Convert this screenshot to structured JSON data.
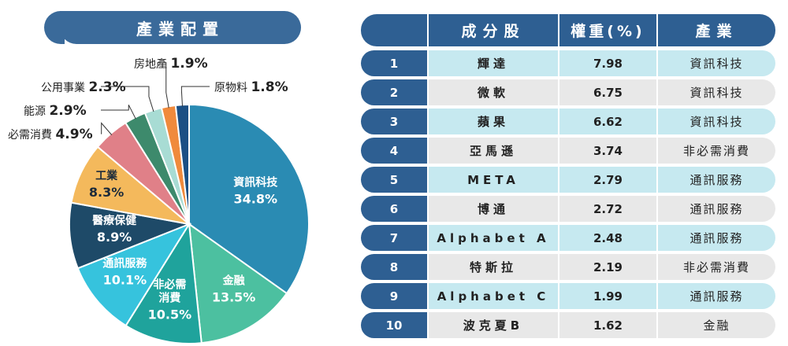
{
  "chart_data": {
    "type": "pie",
    "title": "產業配置",
    "slices": [
      {
        "label": "資訊科技",
        "value": 34.8,
        "text": "34.8%",
        "color": "#2a8bb3"
      },
      {
        "label": "金融",
        "value": 13.5,
        "text": "13.5%",
        "color": "#4cc0a0"
      },
      {
        "label": "非必需消費",
        "value": 10.5,
        "text": "10.5%",
        "color": "#1fa39c"
      },
      {
        "label": "通訊服務",
        "value": 10.1,
        "text": "10.1%",
        "color": "#36c3dd"
      },
      {
        "label": "醫療保健",
        "value": 8.9,
        "text": "8.9%",
        "color": "#1e4a68"
      },
      {
        "label": "工業",
        "value": 8.3,
        "text": "8.3%",
        "color": "#f4b95c"
      },
      {
        "label": "必需消費",
        "value": 4.9,
        "text": "4.9%",
        "color": "#e08088"
      },
      {
        "label": "能源",
        "value": 2.9,
        "text": "2.9%",
        "color": "#3d8a6c"
      },
      {
        "label": "公用事業",
        "value": 2.3,
        "text": "2.3%",
        "color": "#a8dcd4"
      },
      {
        "label": "房地產",
        "value": 1.9,
        "text": "1.9%",
        "color": "#f08a3c"
      },
      {
        "label": "原物料",
        "value": 1.8,
        "text": "1.8%",
        "color": "#1b4f84"
      }
    ]
  },
  "table": {
    "headers": {
      "rank": "",
      "name": "成分股",
      "weight": "權重(%)",
      "sector": "產業"
    },
    "rows": [
      {
        "rank": "1",
        "name": "輝達",
        "weight": "7.98",
        "sector": "資訊科技"
      },
      {
        "rank": "2",
        "name": "微軟",
        "weight": "6.75",
        "sector": "資訊科技"
      },
      {
        "rank": "3",
        "name": "蘋果",
        "weight": "6.62",
        "sector": "資訊科技"
      },
      {
        "rank": "4",
        "name": "亞馬遜",
        "weight": "3.74",
        "sector": "非必需消費"
      },
      {
        "rank": "5",
        "name": "META",
        "weight": "2.79",
        "sector": "通訊服務"
      },
      {
        "rank": "6",
        "name": "博通",
        "weight": "2.72",
        "sector": "通訊服務"
      },
      {
        "rank": "7",
        "name": "Alphabet A",
        "weight": "2.48",
        "sector": "通訊服務"
      },
      {
        "rank": "8",
        "name": "特斯拉",
        "weight": "2.19",
        "sector": "非必需消費"
      },
      {
        "rank": "9",
        "name": "Alphabet C",
        "weight": "1.99",
        "sector": "通訊服務"
      },
      {
        "rank": "10",
        "name": "波克夏B",
        "weight": "1.62",
        "sector": "金融"
      }
    ]
  }
}
